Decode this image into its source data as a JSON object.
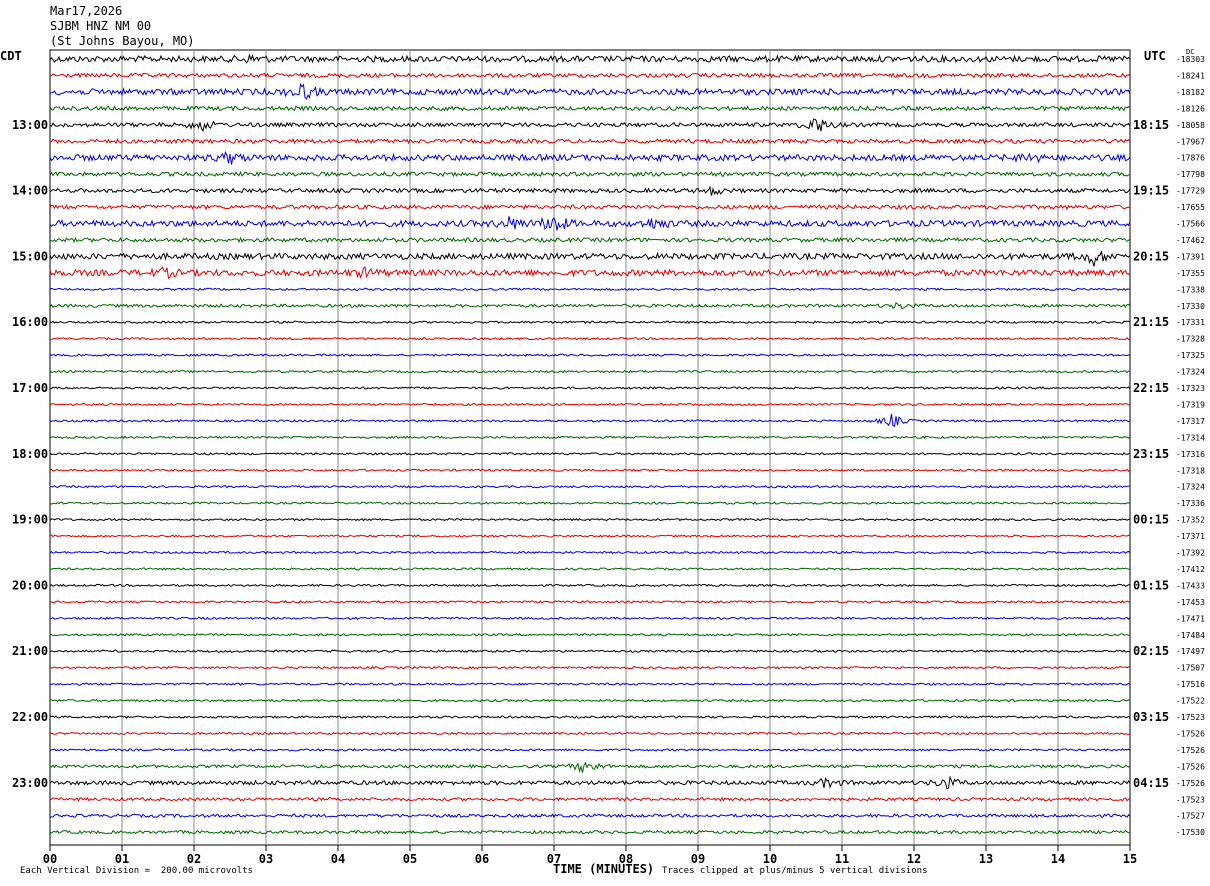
{
  "header": {
    "date": "Mar17,2026",
    "station": "SJBM HNZ NM 00",
    "location": "(St Johns Bayou, MO)"
  },
  "corner_left": "CDT",
  "corner_right": "UTC",
  "dc_label": "DC",
  "footer": {
    "scale_note": "Each Vertical Division =  200.00 microvolts",
    "clip_note": "Traces clipped at plus/minus 5 vertical divisions",
    "xlabel": "TIME (MINUTES)"
  },
  "colors": {
    "trace_cycle": [
      "#000000",
      "#dd0000",
      "#0000dd",
      "#006600"
    ],
    "grid": "#888888"
  },
  "chart_data": {
    "type": "line",
    "title": "SJBM HNZ NM 00",
    "xlabel": "TIME (MINUTES)",
    "xlim": [
      0,
      15
    ],
    "x_ticks": [
      "00",
      "01",
      "02",
      "03",
      "04",
      "05",
      "06",
      "07",
      "08",
      "09",
      "10",
      "11",
      "12",
      "13",
      "14",
      "15"
    ],
    "left_hour_labels": [
      "13:00",
      "14:00",
      "15:00",
      "16:00",
      "17:00",
      "18:00",
      "19:00",
      "20:00",
      "21:00",
      "22:00",
      "23:00"
    ],
    "right_hour_labels": [
      "18:15",
      "19:15",
      "20:15",
      "21:15",
      "22:15",
      "23:15",
      "00:15",
      "01:15",
      "02:15",
      "03:15",
      "04:15"
    ],
    "first_labeled_trace": 4,
    "trace_count": 48,
    "dc_offsets": [
      "-18303",
      "-18241",
      "-18182",
      "-18126",
      "-18058",
      "-17967",
      "-17876",
      "-17798",
      "-17729",
      "-17655",
      "-17566",
      "-17462",
      "-17391",
      "-17355",
      "-17338",
      "-17330",
      "-17331",
      "-17328",
      "-17325",
      "-17324",
      "-17323",
      "-17319",
      "-17317",
      "-17314",
      "-17316",
      "-17318",
      "-17324",
      "-17336",
      "-17352",
      "-17371",
      "-17392",
      "-17412",
      "-17433",
      "-17453",
      "-17471",
      "-17484",
      "-17497",
      "-17507",
      "-17516",
      "-17522",
      "-17523",
      "-17526",
      "-17526",
      "-17526",
      "-17526",
      "-17523",
      "-17527",
      "-17530"
    ],
    "noise_level": [
      3,
      2,
      3,
      2,
      2,
      2,
      3,
      2,
      2,
      2,
      3,
      2,
      3,
      3,
      1,
      1.5,
      1,
      1,
      1,
      1,
      1,
      1,
      1,
      1,
      1,
      1,
      1,
      1,
      1,
      1,
      1,
      1,
      1,
      1,
      1,
      1,
      1,
      1,
      1,
      1,
      1,
      1,
      1,
      1.5,
      2,
      1.5,
      1.5,
      1.5
    ],
    "events": [
      {
        "trace": 0,
        "minute": 2.8,
        "amp": 3
      },
      {
        "trace": 2,
        "minute": 3.5,
        "amp": 8
      },
      {
        "trace": 4,
        "minute": 2.1,
        "amp": 6
      },
      {
        "trace": 4,
        "minute": 10.65,
        "amp": 9
      },
      {
        "trace": 6,
        "minute": 2.5,
        "amp": 5
      },
      {
        "trace": 6,
        "minute": 13.6,
        "amp": 4
      },
      {
        "trace": 8,
        "minute": 9.2,
        "amp": 4
      },
      {
        "trace": 10,
        "minute": 6.4,
        "amp": 6
      },
      {
        "trace": 10,
        "minute": 7.0,
        "amp": 10
      },
      {
        "trace": 10,
        "minute": 8.4,
        "amp": 5
      },
      {
        "trace": 12,
        "minute": 14.5,
        "amp": 8
      },
      {
        "trace": 13,
        "minute": 1.6,
        "amp": 4
      },
      {
        "trace": 13,
        "minute": 4.4,
        "amp": 4
      },
      {
        "trace": 15,
        "minute": 11.8,
        "amp": 3
      },
      {
        "trace": 22,
        "minute": 11.7,
        "amp": 7
      },
      {
        "trace": 43,
        "minute": 7.45,
        "amp": 8
      },
      {
        "trace": 44,
        "minute": 10.8,
        "amp": 5
      },
      {
        "trace": 44,
        "minute": 12.45,
        "amp": 6
      }
    ]
  }
}
